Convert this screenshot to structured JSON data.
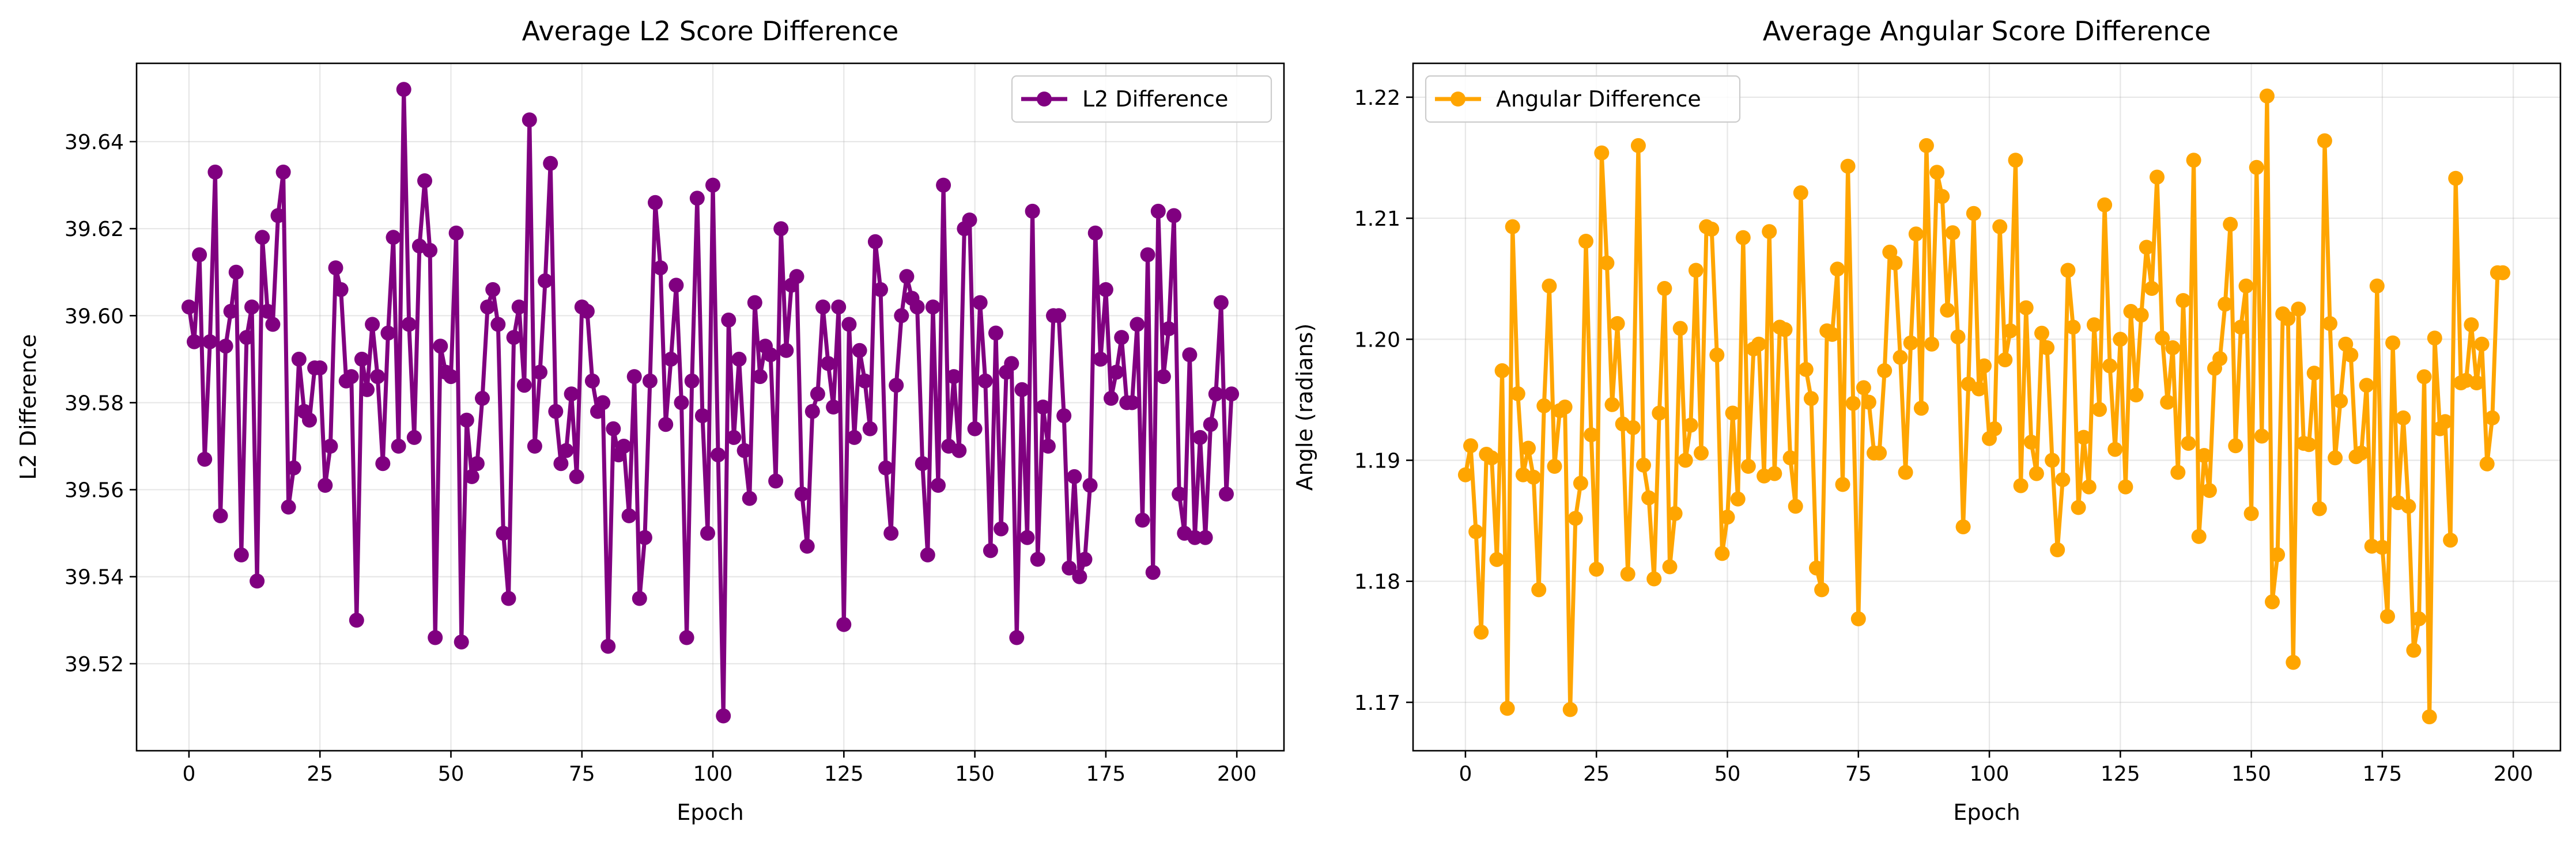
{
  "chart_data": [
    {
      "type": "line",
      "title": "Average L2 Score Difference",
      "xlabel": "Epoch",
      "ylabel": "L2 Difference",
      "xlim": [
        -10,
        209
      ],
      "ylim": [
        39.5,
        39.658
      ],
      "xticks": [
        0,
        25,
        50,
        75,
        100,
        125,
        150,
        175,
        200
      ],
      "yticks": [
        39.52,
        39.54,
        39.56,
        39.58,
        39.6,
        39.62,
        39.64
      ],
      "ytick_labels": [
        "39.52",
        "39.54",
        "39.56",
        "39.58",
        "39.60",
        "39.62",
        "39.64"
      ],
      "grid": true,
      "legend_position": "top-right",
      "marker": "circle",
      "series": [
        {
          "name": "L2 Difference",
          "color": "#800080",
          "values": [
            39.602,
            39.594,
            39.614,
            39.567,
            39.594,
            39.633,
            39.554,
            39.593,
            39.601,
            39.61,
            39.545,
            39.595,
            39.602,
            39.539,
            39.618,
            39.601,
            39.598,
            39.623,
            39.633,
            39.556,
            39.565,
            39.59,
            39.578,
            39.576,
            39.588,
            39.588,
            39.561,
            39.57,
            39.611,
            39.606,
            39.585,
            39.586,
            39.53,
            39.59,
            39.583,
            39.598,
            39.586,
            39.566,
            39.596,
            39.618,
            39.57,
            39.652,
            39.598,
            39.572,
            39.616,
            39.631,
            39.615,
            39.526,
            39.593,
            39.587,
            39.586,
            39.619,
            39.525,
            39.576,
            39.563,
            39.566,
            39.581,
            39.602,
            39.606,
            39.598,
            39.55,
            39.535,
            39.595,
            39.602,
            39.584,
            39.645,
            39.57,
            39.587,
            39.608,
            39.635,
            39.578,
            39.566,
            39.569,
            39.582,
            39.563,
            39.602,
            39.601,
            39.585,
            39.578,
            39.58,
            39.524,
            39.574,
            39.568,
            39.57,
            39.554,
            39.586,
            39.535,
            39.549,
            39.585,
            39.626,
            39.611,
            39.575,
            39.59,
            39.607,
            39.58,
            39.526,
            39.585,
            39.627,
            39.577,
            39.55,
            39.63,
            39.568,
            39.508,
            39.599,
            39.572,
            39.59,
            39.569,
            39.558,
            39.603,
            39.586,
            39.593,
            39.591,
            39.562,
            39.62,
            39.592,
            39.607,
            39.609,
            39.559,
            39.547,
            39.578,
            39.582,
            39.602,
            39.589,
            39.579,
            39.602,
            39.529,
            39.598,
            39.572,
            39.592,
            39.585,
            39.574,
            39.617,
            39.606,
            39.565,
            39.55,
            39.584,
            39.6,
            39.609,
            39.604,
            39.602,
            39.566,
            39.545,
            39.602,
            39.561,
            39.63,
            39.57,
            39.586,
            39.569,
            39.62,
            39.622,
            39.574,
            39.603,
            39.585,
            39.546,
            39.596,
            39.551,
            39.587,
            39.589,
            39.526,
            39.583,
            39.549,
            39.624,
            39.544,
            39.579,
            39.57,
            39.6,
            39.6,
            39.577,
            39.542,
            39.563,
            39.54,
            39.544,
            39.561,
            39.619,
            39.59,
            39.606,
            39.581,
            39.587,
            39.595,
            39.58,
            39.58,
            39.598,
            39.553,
            39.614,
            39.541,
            39.624,
            39.586,
            39.597,
            39.623,
            39.559,
            39.55,
            39.591,
            39.549,
            39.572,
            39.549,
            39.575,
            39.582,
            39.603,
            39.559,
            39.582
          ]
        }
      ]
    },
    {
      "type": "line",
      "title": "Average Angular Score Difference",
      "xlabel": "Epoch",
      "ylabel": "Angle (radians)",
      "xlim": [
        -10,
        209
      ],
      "ylim": [
        1.166,
        1.2228
      ],
      "xticks": [
        0,
        25,
        50,
        75,
        100,
        125,
        150,
        175,
        200
      ],
      "yticks": [
        1.17,
        1.18,
        1.19,
        1.2,
        1.21,
        1.22
      ],
      "ytick_labels": [
        "1.17",
        "1.18",
        "1.19",
        "1.20",
        "1.21",
        "1.22"
      ],
      "grid": true,
      "legend_position": "top-left",
      "marker": "circle",
      "series": [
        {
          "name": "Angular Difference",
          "color": "#FFA500",
          "values": [
            1.1888,
            1.1912,
            1.1841,
            1.1758,
            1.1905,
            1.1902,
            1.1818,
            1.1974,
            1.1695,
            1.2093,
            1.1955,
            1.1888,
            1.191,
            1.1886,
            1.1793,
            1.1945,
            1.2044,
            1.1895,
            1.1941,
            1.1944,
            1.1694,
            1.1852,
            1.1881,
            1.2081,
            1.1921,
            1.181,
            1.2154,
            1.2063,
            1.1946,
            1.2013,
            1.193,
            1.1806,
            1.1927,
            1.216,
            1.1896,
            1.1869,
            1.1802,
            1.1939,
            1.2042,
            1.1812,
            1.1856,
            1.2009,
            1.19,
            1.1929,
            1.2057,
            1.1906,
            1.2093,
            1.2091,
            1.1987,
            1.1823,
            1.1853,
            1.1939,
            1.1868,
            1.2084,
            1.1895,
            1.1992,
            1.1996,
            1.1887,
            1.2089,
            1.1889,
            1.201,
            1.2008,
            1.1902,
            1.1862,
            1.2121,
            1.1975,
            1.1951,
            1.1811,
            1.1793,
            1.2007,
            1.2004,
            1.2058,
            1.188,
            1.2143,
            1.1947,
            1.1769,
            1.196,
            1.1948,
            1.1906,
            1.1906,
            1.1974,
            1.2072,
            1.2063,
            1.1985,
            1.189,
            1.1997,
            1.2087,
            1.1943,
            1.216,
            1.1996,
            1.2138,
            1.2118,
            1.2024,
            1.2088,
            1.2002,
            1.1845,
            1.1963,
            1.2104,
            1.1959,
            1.1978,
            1.1918,
            1.1926,
            1.2093,
            1.1983,
            1.2007,
            1.2148,
            1.1879,
            1.2026,
            1.1915,
            1.1889,
            1.2005,
            1.1993,
            1.19,
            1.1826,
            1.1884,
            1.2057,
            1.201,
            1.1861,
            1.1919,
            1.1878,
            1.2012,
            1.1942,
            1.2111,
            1.1978,
            1.1909,
            1.2,
            1.1878,
            1.2023,
            1.1954,
            1.202,
            1.2076,
            1.2042,
            1.2134,
            1.2001,
            1.1948,
            1.1993,
            1.189,
            1.2032,
            1.1914,
            1.2148,
            1.1837,
            1.1904,
            1.1875,
            1.1976,
            1.1984,
            1.2029,
            1.2095,
            1.1912,
            1.201,
            1.2044,
            1.1856,
            1.2142,
            1.192,
            1.2201,
            1.1783,
            1.1822,
            1.2021,
            1.2017,
            1.1733,
            1.2025,
            1.1914,
            1.1913,
            1.1972,
            1.186,
            1.2164,
            1.2013,
            1.1902,
            1.1949,
            1.1996,
            1.1987,
            1.1903,
            1.1906,
            1.1962,
            1.1829,
            1.2044,
            1.1828,
            1.1771,
            1.1997,
            1.1865,
            1.1935,
            1.1862,
            1.1743,
            1.1769,
            1.1969,
            1.1688,
            1.2001,
            1.1926,
            1.1932,
            1.1834,
            1.2133,
            1.1964,
            1.1966,
            1.2012,
            1.1964,
            1.1996,
            1.1897,
            1.1935,
            1.2055,
            1.2055
          ]
        }
      ]
    }
  ]
}
